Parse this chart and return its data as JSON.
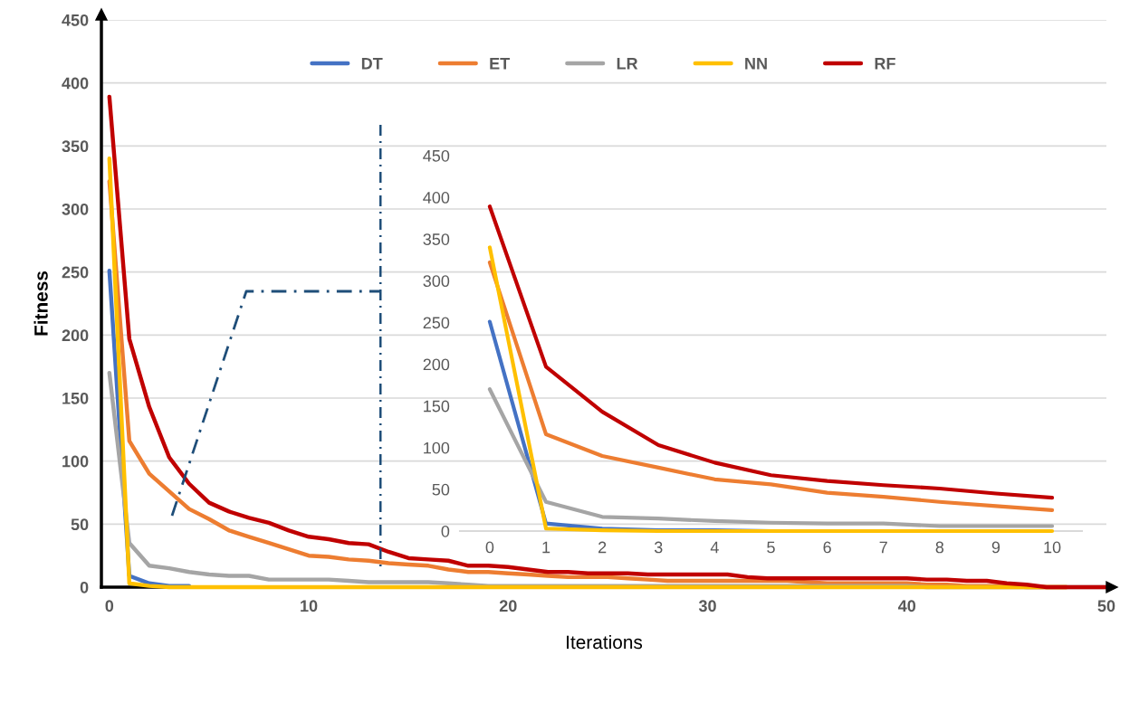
{
  "chart_data": [
    {
      "type": "line",
      "xlabel": "Iterations",
      "ylabel": "Fitness",
      "x": [
        0,
        1,
        2,
        3,
        4,
        5,
        6,
        7,
        8,
        9,
        10,
        11,
        12,
        13,
        14,
        15,
        16,
        17,
        18,
        19,
        20,
        21,
        22,
        23,
        24,
        25,
        26,
        27,
        28,
        29,
        30,
        31,
        32,
        33,
        34,
        35,
        36,
        37,
        38,
        39,
        40,
        41,
        42,
        43,
        44,
        45,
        46,
        47,
        48,
        49,
        50
      ],
      "series": [
        {
          "name": "DT",
          "color": "#4472c4",
          "values": [
            251,
            9,
            3,
            1,
            1,
            null,
            null,
            null,
            null,
            null,
            null,
            null,
            null,
            null,
            null,
            null,
            null,
            null,
            null,
            null,
            null,
            null,
            null,
            null,
            null,
            null,
            null,
            null,
            null,
            null,
            null,
            null,
            null,
            null,
            null,
            null,
            null,
            null,
            null,
            null,
            null,
            null,
            null,
            null,
            null,
            null,
            null,
            null,
            null,
            null,
            null
          ]
        },
        {
          "name": "ET",
          "color": "#ed7d31",
          "values": [
            322,
            116,
            90,
            76,
            62,
            54,
            45,
            40,
            35,
            30,
            25,
            24,
            22,
            21,
            19,
            18,
            17,
            14,
            12,
            12,
            11,
            10,
            9,
            8,
            8,
            8,
            7,
            6,
            5,
            5,
            5,
            5,
            5,
            5,
            5,
            4,
            3,
            3,
            3,
            3,
            3,
            2,
            2,
            1,
            1,
            1,
            0,
            0,
            0,
            null,
            null
          ]
        },
        {
          "name": "LR",
          "color": "#a5a5a5",
          "values": [
            170,
            35,
            17,
            15,
            12,
            10,
            9,
            9,
            6,
            6,
            6,
            6,
            5,
            4,
            4,
            4,
            4,
            3,
            2,
            1,
            1,
            1,
            1,
            1,
            1,
            1,
            1,
            1,
            1,
            1,
            1,
            1,
            1,
            1,
            1,
            1,
            1,
            1,
            1,
            1,
            1,
            0,
            0,
            0,
            0,
            0,
            0,
            0,
            0,
            0,
            0
          ]
        },
        {
          "name": "NN",
          "color": "#ffc000",
          "values": [
            340,
            3,
            1,
            0,
            0,
            0,
            0,
            0,
            0,
            0,
            0,
            0,
            0,
            0,
            0,
            0,
            0,
            0,
            0,
            0,
            0,
            0,
            0,
            0,
            0,
            0,
            0,
            0,
            0,
            0,
            0,
            0,
            0,
            0,
            0,
            0,
            0,
            0,
            0,
            0,
            0,
            0,
            0,
            0,
            0,
            0,
            0,
            0,
            0,
            null,
            null
          ]
        },
        {
          "name": "RF",
          "color": "#c00000",
          "values": [
            389,
            197,
            143,
            103,
            82,
            67,
            60,
            55,
            51,
            45,
            40,
            38,
            35,
            34,
            28,
            23,
            22,
            21,
            17,
            17,
            16,
            14,
            12,
            12,
            11,
            11,
            11,
            10,
            10,
            10,
            10,
            10,
            8,
            7,
            7,
            7,
            7,
            7,
            7,
            7,
            7,
            6,
            6,
            5,
            5,
            3,
            2,
            0,
            0,
            0,
            0
          ]
        }
      ],
      "xlim": [
        -0.4,
        50
      ],
      "xticks": [
        0,
        10,
        20,
        30,
        40,
        50
      ],
      "ylim": [
        0,
        450
      ],
      "yticks": [
        0,
        50,
        100,
        150,
        200,
        250,
        300,
        350,
        400,
        450
      ],
      "grid": "y",
      "legend": "top"
    },
    {
      "type": "line",
      "categories": [
        "0",
        "1",
        "2",
        "3",
        "4",
        "5",
        "6",
        "7",
        "8",
        "9",
        "10"
      ],
      "series": [
        {
          "color": "#4472c4",
          "values": [
            251,
            9,
            3,
            1,
            1,
            0,
            0,
            null,
            null,
            null,
            null
          ]
        },
        {
          "color": "#ed7d31",
          "values": [
            322,
            116,
            90,
            76,
            62,
            56,
            46,
            41,
            35,
            30,
            25
          ]
        },
        {
          "color": "#a5a5a5",
          "values": [
            170,
            35,
            17,
            15,
            12,
            10,
            9,
            9,
            6,
            6,
            6
          ]
        },
        {
          "color": "#ffc000",
          "values": [
            340,
            3,
            1,
            0,
            0,
            0,
            0,
            0,
            0,
            0,
            0
          ]
        },
        {
          "color": "#c00000",
          "values": [
            389,
            197,
            143,
            103,
            82,
            67,
            60,
            55,
            51,
            45,
            40
          ]
        }
      ],
      "ylim": [
        0,
        450
      ],
      "yticks": [
        0,
        50,
        100,
        150,
        200,
        250,
        300,
        350,
        400,
        450
      ]
    }
  ]
}
